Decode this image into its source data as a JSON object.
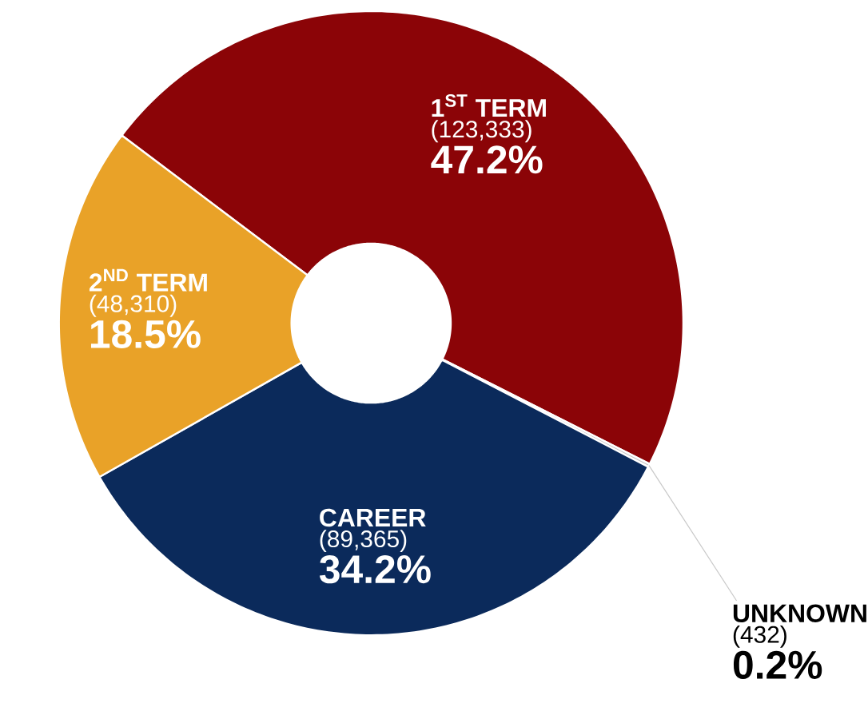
{
  "chart_data": {
    "type": "donut",
    "categories": [
      "1$^{ST}$ TERM",
      "UNKNOWN",
      "CAREER",
      "2$^{ND}$ TERM"
    ],
    "values": [
      123333,
      432,
      89365,
      48310
    ],
    "colors": [
      "#8b0407",
      "#c8c8c8",
      "#0b2a5b",
      "#e9a228"
    ],
    "value_labels": [
      "(123,333)",
      "(432)",
      "(89,365)",
      "(48,310)"
    ],
    "annotations": [
      "47.2%",
      "0.2%",
      "34.2%",
      "18.5%"
    ]
  }
}
